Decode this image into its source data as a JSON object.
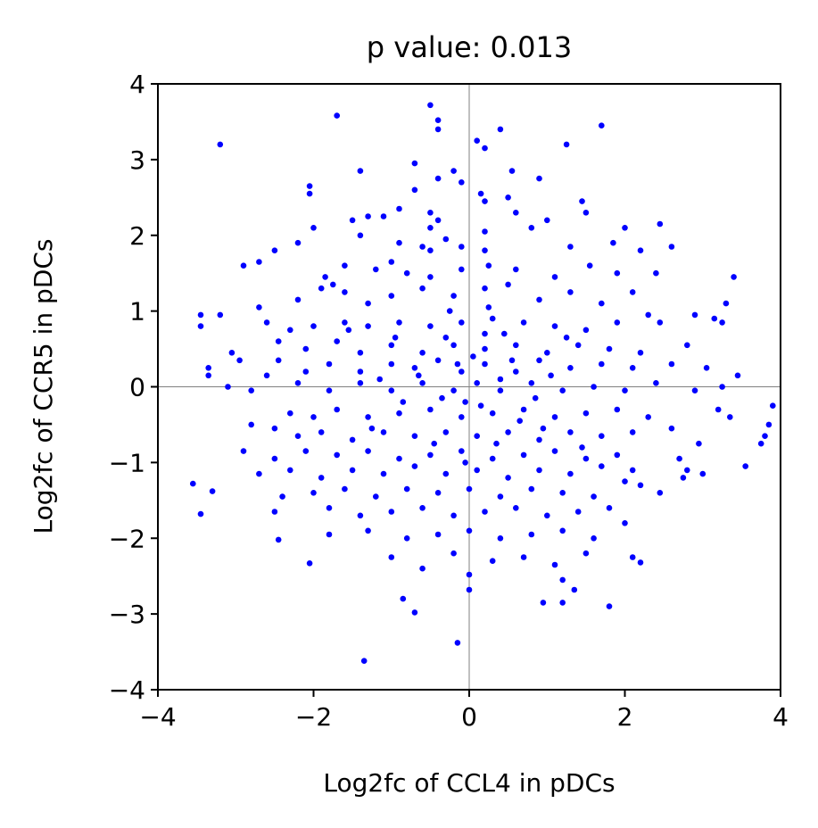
{
  "chart_data": {
    "type": "scatter",
    "title": "p value: 0.013",
    "xlabel": "Log2fc of CCL4 in pDCs",
    "ylabel": "Log2fc of CCR5 in pDCs",
    "xlim": [
      -4,
      4
    ],
    "ylim": [
      -4,
      4
    ],
    "xticks": [
      -4,
      -2,
      0,
      2,
      4
    ],
    "yticks": [
      -4,
      -3,
      -2,
      -1,
      0,
      1,
      2,
      3,
      4
    ],
    "xtick_labels": [
      "−4",
      "−2",
      "0",
      "2",
      "4"
    ],
    "ytick_labels": [
      "−4",
      "−3",
      "−2",
      "−1",
      "0",
      "1",
      "2",
      "3",
      "4"
    ],
    "reference_lines": {
      "x": 0,
      "y": 0
    },
    "grid": false,
    "marker_color": "#0000ff",
    "points": [
      [
        -0.5,
        3.72
      ],
      [
        -0.4,
        3.52
      ],
      [
        -0.4,
        3.4
      ],
      [
        0.4,
        3.4
      ],
      [
        1.7,
        3.45
      ],
      [
        -1.7,
        3.58
      ],
      [
        -3.2,
        3.2
      ],
      [
        0.1,
        3.25
      ],
      [
        0.2,
        3.15
      ],
      [
        1.25,
        3.2
      ],
      [
        -1.4,
        2.85
      ],
      [
        -0.2,
        2.85
      ],
      [
        -0.4,
        2.75
      ],
      [
        0.55,
        2.85
      ],
      [
        0.9,
        2.75
      ],
      [
        -2.05,
        2.65
      ],
      [
        -2.05,
        2.55
      ],
      [
        -0.1,
        2.7
      ],
      [
        -0.7,
        2.95
      ],
      [
        -0.7,
        2.6
      ],
      [
        0.15,
        2.55
      ],
      [
        -0.9,
        2.35
      ],
      [
        0.2,
        2.45
      ],
      [
        0.5,
        2.5
      ],
      [
        1.45,
        2.45
      ],
      [
        -1.5,
        2.2
      ],
      [
        -1.3,
        2.25
      ],
      [
        -1.1,
        2.25
      ],
      [
        -0.5,
        2.3
      ],
      [
        -0.4,
        2.2
      ],
      [
        0.6,
        2.3
      ],
      [
        1.0,
        2.2
      ],
      [
        1.5,
        2.3
      ],
      [
        -2.0,
        2.1
      ],
      [
        -0.5,
        2.1
      ],
      [
        0.2,
        2.05
      ],
      [
        0.8,
        2.1
      ],
      [
        2.0,
        2.1
      ],
      [
        2.45,
        2.15
      ],
      [
        -1.4,
        2.0
      ],
      [
        -0.9,
        1.9
      ],
      [
        -0.3,
        1.95
      ],
      [
        -2.2,
        1.9
      ],
      [
        -2.5,
        1.8
      ],
      [
        -2.7,
        1.65
      ],
      [
        -2.9,
        1.6
      ],
      [
        -0.6,
        1.85
      ],
      [
        -0.5,
        1.8
      ],
      [
        -0.1,
        1.85
      ],
      [
        0.2,
        1.8
      ],
      [
        1.3,
        1.85
      ],
      [
        1.85,
        1.9
      ],
      [
        2.2,
        1.8
      ],
      [
        2.6,
        1.85
      ],
      [
        -1.6,
        1.6
      ],
      [
        -1.85,
        1.45
      ],
      [
        -1.75,
        1.35
      ],
      [
        -1.2,
        1.55
      ],
      [
        -1.0,
        1.65
      ],
      [
        -0.8,
        1.5
      ],
      [
        -0.5,
        1.45
      ],
      [
        -0.1,
        1.55
      ],
      [
        0.25,
        1.6
      ],
      [
        0.6,
        1.55
      ],
      [
        1.1,
        1.45
      ],
      [
        1.55,
        1.6
      ],
      [
        1.9,
        1.5
      ],
      [
        2.4,
        1.5
      ],
      [
        3.4,
        1.45
      ],
      [
        -2.7,
        1.05
      ],
      [
        -2.2,
        1.15
      ],
      [
        -1.9,
        1.3
      ],
      [
        -1.6,
        1.25
      ],
      [
        -1.3,
        1.1
      ],
      [
        -1.0,
        1.2
      ],
      [
        -0.6,
        1.3
      ],
      [
        -0.2,
        1.2
      ],
      [
        0.2,
        1.3
      ],
      [
        0.5,
        1.35
      ],
      [
        0.9,
        1.15
      ],
      [
        1.3,
        1.25
      ],
      [
        1.7,
        1.1
      ],
      [
        2.1,
        1.25
      ],
      [
        2.3,
        0.95
      ],
      [
        3.3,
        1.1
      ],
      [
        -3.45,
        0.95
      ],
      [
        -3.45,
        0.8
      ],
      [
        -3.2,
        0.95
      ],
      [
        -2.6,
        0.85
      ],
      [
        -2.3,
        0.75
      ],
      [
        -2.0,
        0.8
      ],
      [
        -1.6,
        0.85
      ],
      [
        -1.3,
        0.8
      ],
      [
        -0.9,
        0.85
      ],
      [
        -0.5,
        0.8
      ],
      [
        -0.1,
        0.85
      ],
      [
        0.3,
        0.9
      ],
      [
        0.7,
        0.85
      ],
      [
        1.1,
        0.8
      ],
      [
        1.5,
        0.75
      ],
      [
        1.9,
        0.85
      ],
      [
        2.45,
        0.85
      ],
      [
        2.9,
        0.95
      ],
      [
        3.25,
        0.85
      ],
      [
        3.15,
        0.9
      ],
      [
        -2.45,
        0.6
      ],
      [
        -2.1,
        0.5
      ],
      [
        -1.7,
        0.6
      ],
      [
        -1.4,
        0.45
      ],
      [
        -1.0,
        0.55
      ],
      [
        -0.6,
        0.45
      ],
      [
        -0.2,
        0.55
      ],
      [
        0.2,
        0.5
      ],
      [
        0.6,
        0.55
      ],
      [
        1.0,
        0.45
      ],
      [
        1.4,
        0.55
      ],
      [
        1.8,
        0.5
      ],
      [
        2.2,
        0.45
      ],
      [
        2.8,
        0.55
      ],
      [
        -3.05,
        0.45
      ],
      [
        -2.95,
        0.35
      ],
      [
        -3.35,
        0.25
      ],
      [
        -3.35,
        0.15
      ],
      [
        -2.45,
        0.35
      ],
      [
        -2.1,
        0.2
      ],
      [
        -1.8,
        0.3
      ],
      [
        -1.4,
        0.2
      ],
      [
        -1.0,
        0.3
      ],
      [
        -0.7,
        0.25
      ],
      [
        -0.4,
        0.35
      ],
      [
        -0.1,
        0.2
      ],
      [
        0.2,
        0.3
      ],
      [
        0.6,
        0.2
      ],
      [
        0.9,
        0.35
      ],
      [
        1.3,
        0.25
      ],
      [
        1.7,
        0.3
      ],
      [
        2.1,
        0.25
      ],
      [
        2.6,
        0.3
      ],
      [
        3.05,
        0.25
      ],
      [
        3.45,
        0.15
      ],
      [
        -3.1,
        0.0
      ],
      [
        -2.8,
        -0.05
      ],
      [
        -2.6,
        0.15
      ],
      [
        -2.2,
        0.05
      ],
      [
        -1.8,
        -0.05
      ],
      [
        -1.4,
        0.05
      ],
      [
        -1.0,
        -0.05
      ],
      [
        -0.6,
        0.05
      ],
      [
        -0.2,
        -0.05
      ],
      [
        0.1,
        0.05
      ],
      [
        0.4,
        -0.05
      ],
      [
        0.8,
        0.05
      ],
      [
        1.2,
        -0.05
      ],
      [
        1.6,
        0.0
      ],
      [
        2.0,
        -0.05
      ],
      [
        2.4,
        0.05
      ],
      [
        2.9,
        -0.05
      ],
      [
        3.25,
        0.0
      ],
      [
        -2.3,
        -0.35
      ],
      [
        -2.0,
        -0.4
      ],
      [
        -1.7,
        -0.3
      ],
      [
        -1.3,
        -0.4
      ],
      [
        -0.9,
        -0.35
      ],
      [
        -0.5,
        -0.3
      ],
      [
        -0.1,
        -0.4
      ],
      [
        0.3,
        -0.35
      ],
      [
        0.7,
        -0.3
      ],
      [
        1.1,
        -0.4
      ],
      [
        1.5,
        -0.35
      ],
      [
        1.9,
        -0.3
      ],
      [
        2.3,
        -0.4
      ],
      [
        3.2,
        -0.3
      ],
      [
        3.35,
        -0.4
      ],
      [
        3.9,
        -0.25
      ],
      [
        -2.5,
        -0.55
      ],
      [
        -2.8,
        -0.5
      ],
      [
        -2.2,
        -0.65
      ],
      [
        -1.9,
        -0.6
      ],
      [
        -1.5,
        -0.7
      ],
      [
        -1.1,
        -0.6
      ],
      [
        -0.7,
        -0.65
      ],
      [
        -0.3,
        -0.6
      ],
      [
        0.1,
        -0.65
      ],
      [
        0.5,
        -0.6
      ],
      [
        0.9,
        -0.7
      ],
      [
        1.3,
        -0.6
      ],
      [
        1.7,
        -0.65
      ],
      [
        2.1,
        -0.6
      ],
      [
        2.6,
        -0.55
      ],
      [
        3.85,
        -0.5
      ],
      [
        3.8,
        -0.65
      ],
      [
        3.75,
        -0.75
      ],
      [
        -2.9,
        -0.85
      ],
      [
        -2.5,
        -0.95
      ],
      [
        -2.1,
        -0.85
      ],
      [
        -1.7,
        -0.9
      ],
      [
        -1.3,
        -0.85
      ],
      [
        -0.9,
        -0.95
      ],
      [
        -0.5,
        -0.9
      ],
      [
        -0.1,
        -0.85
      ],
      [
        0.3,
        -0.95
      ],
      [
        0.7,
        -0.9
      ],
      [
        1.1,
        -0.85
      ],
      [
        1.5,
        -0.95
      ],
      [
        1.9,
        -0.9
      ],
      [
        2.7,
        -0.95
      ],
      [
        2.95,
        -0.75
      ],
      [
        -2.7,
        -1.15
      ],
      [
        -2.3,
        -1.1
      ],
      [
        -1.9,
        -1.2
      ],
      [
        -1.5,
        -1.1
      ],
      [
        -1.1,
        -1.15
      ],
      [
        -0.7,
        -1.05
      ],
      [
        -0.3,
        -1.15
      ],
      [
        0.1,
        -1.1
      ],
      [
        0.5,
        -1.2
      ],
      [
        0.9,
        -1.1
      ],
      [
        1.3,
        -1.15
      ],
      [
        1.7,
        -1.05
      ],
      [
        2.1,
        -1.1
      ],
      [
        2.8,
        -1.1
      ],
      [
        2.75,
        -1.2
      ],
      [
        3.0,
        -1.15
      ],
      [
        3.55,
        -1.05
      ],
      [
        -3.55,
        -1.28
      ],
      [
        -3.3,
        -1.38
      ],
      [
        -2.4,
        -1.45
      ],
      [
        -2.0,
        -1.4
      ],
      [
        -1.6,
        -1.35
      ],
      [
        -1.2,
        -1.45
      ],
      [
        -0.8,
        -1.35
      ],
      [
        -0.4,
        -1.4
      ],
      [
        0.0,
        -1.35
      ],
      [
        0.4,
        -1.45
      ],
      [
        0.8,
        -1.35
      ],
      [
        1.2,
        -1.4
      ],
      [
        1.6,
        -1.45
      ],
      [
        2.0,
        -1.25
      ],
      [
        2.2,
        -1.3
      ],
      [
        2.45,
        -1.4
      ],
      [
        -2.5,
        -1.65
      ],
      [
        -1.8,
        -1.6
      ],
      [
        -1.4,
        -1.7
      ],
      [
        -1.0,
        -1.65
      ],
      [
        -0.6,
        -1.6
      ],
      [
        -0.2,
        -1.7
      ],
      [
        0.2,
        -1.65
      ],
      [
        0.6,
        -1.6
      ],
      [
        1.0,
        -1.7
      ],
      [
        1.4,
        -1.65
      ],
      [
        1.8,
        -1.6
      ],
      [
        -3.45,
        -1.68
      ],
      [
        -2.45,
        -2.02
      ],
      [
        -1.8,
        -1.95
      ],
      [
        -1.3,
        -1.9
      ],
      [
        -0.8,
        -2.0
      ],
      [
        -0.4,
        -1.95
      ],
      [
        0.0,
        -1.9
      ],
      [
        0.4,
        -2.0
      ],
      [
        0.8,
        -1.95
      ],
      [
        1.2,
        -1.9
      ],
      [
        1.6,
        -2.0
      ],
      [
        2.0,
        -1.8
      ],
      [
        -2.05,
        -2.33
      ],
      [
        -1.0,
        -2.25
      ],
      [
        -0.6,
        -2.4
      ],
      [
        -0.2,
        -2.2
      ],
      [
        0.3,
        -2.3
      ],
      [
        0.7,
        -2.25
      ],
      [
        1.1,
        -2.35
      ],
      [
        1.5,
        -2.2
      ],
      [
        2.1,
        -2.25
      ],
      [
        2.2,
        -2.32
      ],
      [
        0.0,
        -2.48
      ],
      [
        0.0,
        -2.68
      ],
      [
        1.2,
        -2.55
      ],
      [
        1.35,
        -2.68
      ],
      [
        -0.85,
        -2.8
      ],
      [
        -0.7,
        -2.98
      ],
      [
        0.95,
        -2.85
      ],
      [
        1.2,
        -2.85
      ],
      [
        1.8,
        -2.9
      ],
      [
        -0.15,
        -3.38
      ],
      [
        -1.35,
        -3.62
      ],
      [
        0.2,
        0.7
      ],
      [
        0.4,
        0.1
      ],
      [
        -0.3,
        0.65
      ],
      [
        -0.05,
        -0.2
      ],
      [
        0.15,
        -0.25
      ],
      [
        0.55,
        0.35
      ],
      [
        -0.65,
        0.15
      ],
      [
        -0.35,
        -0.15
      ],
      [
        0.05,
        0.4
      ],
      [
        0.85,
        -0.15
      ],
      [
        -0.85,
        -0.2
      ],
      [
        1.05,
        0.15
      ],
      [
        -1.15,
        0.1
      ],
      [
        0.35,
        -0.75
      ],
      [
        -0.45,
        -0.75
      ],
      [
        0.65,
        -0.45
      ],
      [
        -0.05,
        -1.0
      ],
      [
        0.25,
        1.05
      ],
      [
        -0.25,
        1.0
      ],
      [
        1.25,
        0.65
      ],
      [
        -1.25,
        -0.55
      ],
      [
        0.95,
        -0.55
      ],
      [
        -0.95,
        0.65
      ],
      [
        1.45,
        -0.8
      ],
      [
        -1.55,
        0.75
      ],
      [
        0.45,
        0.7
      ],
      [
        -0.15,
        0.3
      ]
    ]
  }
}
